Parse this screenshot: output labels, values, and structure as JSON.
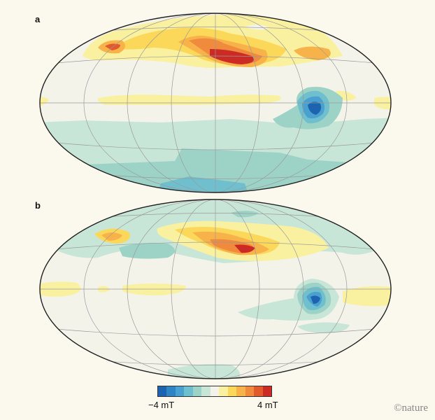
{
  "panels": [
    {
      "label": "a"
    },
    {
      "label": "b"
    }
  ],
  "colorbar": {
    "min_label": "−4 mT",
    "max_label": "4 mT",
    "colors": [
      "#1d64b0",
      "#2f84c4",
      "#4aa0cf",
      "#6fbfce",
      "#9dd3c7",
      "#c8e6d8",
      "#f3f3ea",
      "#faf1a0",
      "#fbd85a",
      "#f8b24a",
      "#f08a3c",
      "#e05a2c",
      "#cc2a24"
    ]
  },
  "credit": "©nature"
}
